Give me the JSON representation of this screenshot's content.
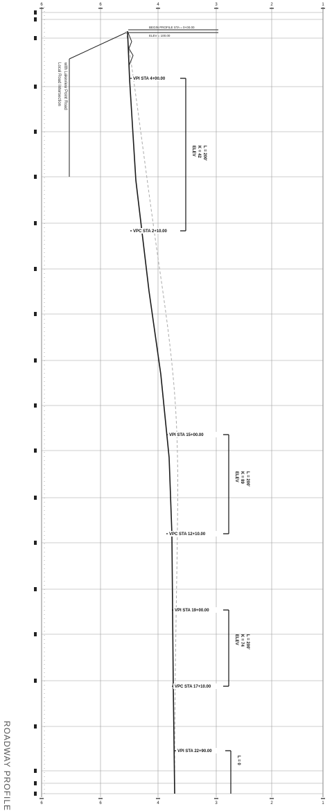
{
  "sheet": {
    "title": "ROADWAY PROFILE",
    "note_line1": "Local Road Intersection",
    "note_line2": "with Lakeview Point Road",
    "top_label": "BEGIN PROFILE STA = 0+00.00",
    "top_label_2": "ELEV = 100.00"
  },
  "axes": {
    "elevation_ticks": [
      "6",
      "6",
      "4",
      "3",
      "2",
      "1"
    ],
    "grid_columns": 5
  },
  "curves": [
    {
      "id": "vc-1",
      "label": "VPI STA 4+00.00",
      "sublabel": "VPC STA 2+10.00",
      "annotation": "ELEV\nK = 42\nL = 200'"
    },
    {
      "id": "vc-2",
      "label": "VPI STA 15+00.00",
      "sublabel": "VPC STA 12+10.00",
      "annotation": "ELEV\nK = 89\nL = 200'"
    },
    {
      "id": "vc-3",
      "label": "VPI STA 19+00.00",
      "sublabel": "VPC STA 17+10.00",
      "annotation": "ELEV\nK = 74\nL = 200'"
    },
    {
      "id": "vc-4",
      "label": "VPI STA 22+90.00",
      "sublabel": "",
      "annotation": "L = 0"
    }
  ],
  "colors": {
    "grid": "#9a9a9a",
    "line": "#1a1a1a",
    "dashed": "#aaaaaa"
  }
}
